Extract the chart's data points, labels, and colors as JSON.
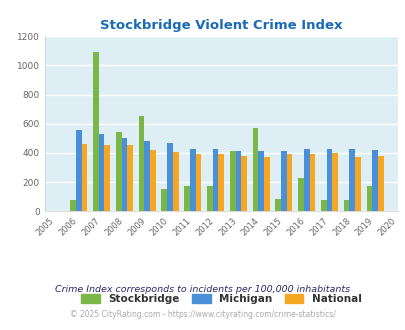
{
  "title": "Stockbridge Violent Crime Index",
  "years": [
    2005,
    2006,
    2007,
    2008,
    2009,
    2010,
    2011,
    2012,
    2013,
    2014,
    2015,
    2016,
    2017,
    2018,
    2019,
    2020
  ],
  "stockbridge": [
    null,
    80,
    1090,
    545,
    650,
    155,
    175,
    175,
    410,
    572,
    85,
    230,
    75,
    75,
    170,
    null
  ],
  "michigan": [
    null,
    560,
    530,
    500,
    480,
    470,
    425,
    430,
    415,
    415,
    410,
    430,
    428,
    428,
    420,
    null
  ],
  "national": [
    null,
    462,
    455,
    455,
    420,
    403,
    390,
    390,
    378,
    375,
    393,
    390,
    396,
    375,
    378,
    null
  ],
  "stockbridge_color": "#7ab648",
  "michigan_color": "#4a90d9",
  "national_color": "#f5a623",
  "bg_color": "#deeef5",
  "grid_color": "#ffffff",
  "ylim": [
    0,
    1200
  ],
  "yticks": [
    0,
    200,
    400,
    600,
    800,
    1000,
    1200
  ],
  "title_color": "#1a6ab5",
  "legend_labels": [
    "Stockbridge",
    "Michigan",
    "National"
  ],
  "footnote1": "Crime Index corresponds to incidents per 100,000 inhabitants",
  "footnote2": "© 2025 CityRating.com - https://www.cityrating.com/crime-statistics/",
  "footnote1_color": "#2a2a6a",
  "footnote2_color": "#aaaaaa",
  "url_color": "#4a90d9"
}
